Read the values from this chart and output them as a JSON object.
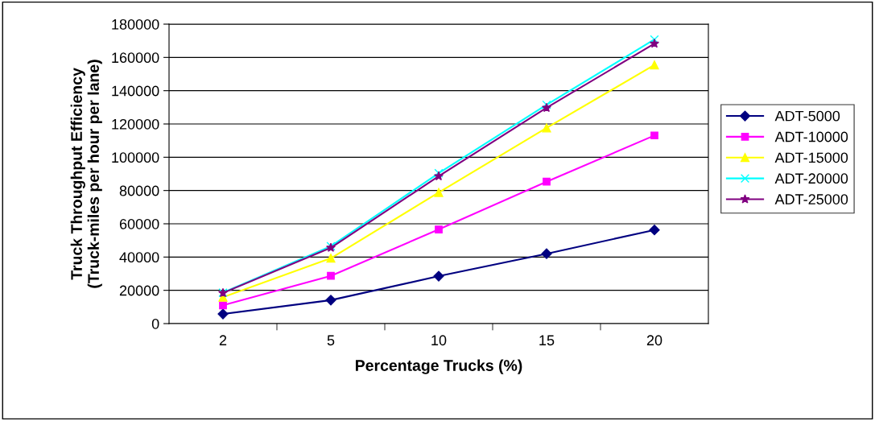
{
  "chart_data": {
    "type": "line",
    "xlabel": "Percentage Trucks (%)",
    "ylabel": "Truck Throughput Efficiency\n(Truck-miles per hour per lane)",
    "categories": [
      "2",
      "5",
      "10",
      "15",
      "20"
    ],
    "series": [
      {
        "name": "ADT-5000",
        "color": "#000080",
        "marker": "diamond",
        "values": [
          5800,
          14100,
          28500,
          42000,
          56300
        ]
      },
      {
        "name": "ADT-10000",
        "color": "#ff00ff",
        "marker": "square",
        "values": [
          11000,
          28700,
          56600,
          85300,
          113100
        ]
      },
      {
        "name": "ADT-15000",
        "color": "#ffff00",
        "marker": "triangle",
        "values": [
          15900,
          39300,
          78800,
          117600,
          155500
        ]
      },
      {
        "name": "ADT-20000",
        "color": "#00ffff",
        "marker": "cross",
        "values": [
          18600,
          46500,
          90400,
          131500,
          170800
        ]
      },
      {
        "name": "ADT-25000",
        "color": "#800080",
        "marker": "star",
        "values": [
          18400,
          45600,
          88600,
          129700,
          168300
        ]
      }
    ],
    "ylim": [
      0,
      180000
    ],
    "yticks": [
      0,
      20000,
      40000,
      60000,
      80000,
      100000,
      120000,
      140000,
      160000,
      180000
    ],
    "grid": "y",
    "legend": "right"
  }
}
